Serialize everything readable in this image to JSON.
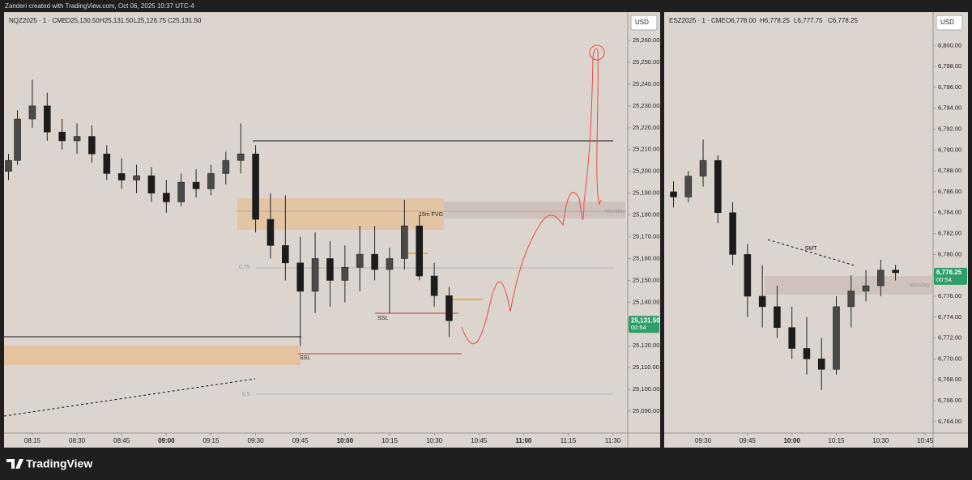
{
  "header": {
    "text": "Zanderi created with TradingView.com, Oct 06, 2025 10:37 UTC-4"
  },
  "footer": {
    "brand": "TradingView"
  },
  "chart_data": [
    {
      "type": "candlestick",
      "symbol": "NQZ2025 · 1 · CME",
      "ohlc": [
        "O25,130.50",
        "H25,131.50",
        "L25,126.75",
        "C25,131.50"
      ],
      "currency": "USD",
      "last_price": {
        "value": 25131.5,
        "label": "25,131.50"
      },
      "countdown": "00:54",
      "annotations": [
        "15m FVG",
        "Monday",
        "0.75",
        "0.5",
        "SSL",
        "SSL"
      ],
      "up_color": "#4a4a4a",
      "down_color": "#1c1c1c",
      "ylim": [
        25080,
        25273
      ],
      "xlim": [
        485.5,
        695
      ],
      "yticks": [
        {
          "value": 25090,
          "label": "25,090.00"
        },
        {
          "value": 25100,
          "label": "25,100.00"
        },
        {
          "value": 25110,
          "label": "25,110.00"
        },
        {
          "value": 25120,
          "label": "25,120.00"
        },
        {
          "value": 25130,
          "label": "25,130.00"
        },
        {
          "value": 25140,
          "label": "25,140.00"
        },
        {
          "value": 25150,
          "label": "25,150.00"
        },
        {
          "value": 25160,
          "label": "25,160.00"
        },
        {
          "value": 25170,
          "label": "25,170.00"
        },
        {
          "value": 25180,
          "label": "25,180.00"
        },
        {
          "value": 25190,
          "label": "25,190.00"
        },
        {
          "value": 25200,
          "label": "25,200.00"
        },
        {
          "value": 25210,
          "label": "25,210.00"
        },
        {
          "value": 25220,
          "label": "25,220.00"
        },
        {
          "value": 25230,
          "label": "25,230.00"
        },
        {
          "value": 25240,
          "label": "25,240.00"
        },
        {
          "value": 25250,
          "label": "25,250.00"
        },
        {
          "value": 25260,
          "label": "25,260.00"
        }
      ],
      "xticks": [
        {
          "value": 495,
          "label": "08:15"
        },
        {
          "value": 510,
          "label": "08:30"
        },
        {
          "value": 525,
          "label": "08:45"
        },
        {
          "value": 540,
          "label": "09:00"
        },
        {
          "value": 555,
          "label": "09:15"
        },
        {
          "value": 570,
          "label": "09:30"
        },
        {
          "value": 585,
          "label": "09:45"
        },
        {
          "value": 600,
          "label": "10:00"
        },
        {
          "value": 615,
          "label": "10:15"
        },
        {
          "value": 630,
          "label": "10:30"
        },
        {
          "value": 645,
          "label": "10:45"
        },
        {
          "value": 660,
          "label": "11:00"
        },
        {
          "value": 675,
          "label": "11:15"
        },
        {
          "value": 690,
          "label": "11:30"
        }
      ],
      "x": [
        487,
        490,
        495,
        500,
        505,
        510,
        515,
        520,
        525,
        530,
        535,
        540,
        545,
        550,
        555,
        560,
        565,
        570,
        575,
        580,
        585,
        590,
        595,
        600,
        605,
        610,
        615,
        620,
        625,
        630,
        635
      ],
      "open": [
        25200,
        25205,
        25224,
        25230,
        25218,
        25214,
        25216,
        25208,
        25199,
        25196,
        25198,
        25190,
        25186,
        25195,
        25192,
        25199,
        25205,
        25208,
        25178,
        25166,
        25158,
        25145,
        25160,
        25150,
        25156,
        25162,
        25155,
        25160,
        25175,
        25152,
        25143
      ],
      "high": [
        25208,
        25228,
        25242,
        25236,
        25224,
        25222,
        25221,
        25212,
        25206,
        25203,
        25202,
        25196,
        25199,
        25201,
        25203,
        25209,
        25222,
        25212,
        25190,
        25189,
        25170,
        25172,
        25168,
        25166,
        25175,
        25175,
        25165,
        25187,
        25180,
        25158,
        25147
      ],
      "low": [
        25196,
        25203,
        25220,
        25214,
        25210,
        25208,
        25204,
        25196,
        25192,
        25190,
        25186,
        25181,
        25184,
        25188,
        25189,
        25194,
        25199,
        25172,
        25160,
        25150,
        25120,
        25135,
        25138,
        25140,
        25145,
        25150,
        25135,
        25155,
        25150,
        25138,
        25124
      ],
      "close": [
        25205,
        25224,
        25230,
        25218,
        25214,
        25216,
        25208,
        25199,
        25196,
        25198,
        25190,
        25186,
        25195,
        25192,
        25199,
        25205,
        25208,
        25178,
        25166,
        25158,
        25145,
        25160,
        25150,
        25156,
        25162,
        25155,
        25160,
        25175,
        25152,
        25143,
        25131.5
      ]
    },
    {
      "type": "candlestick",
      "symbol": "ESZ2025 · 1 · CME",
      "ohlc": [
        "O6,778.00",
        "H6,778.25",
        "L6,777.75",
        "C6,778.25"
      ],
      "currency": "USD",
      "last_price": {
        "value": 6778.25,
        "label": "6,778.25"
      },
      "countdown": "00:54",
      "annotations": [
        "SMT",
        "Monday"
      ],
      "up_color": "#4a4a4a",
      "down_color": "#1c1c1c",
      "ylim": [
        6762.9,
        6803.2
      ],
      "xlim": [
        557.4,
        647.7
      ],
      "yticks": [
        {
          "value": 6764,
          "label": "6,764.00"
        },
        {
          "value": 6766,
          "label": "6,766.00"
        },
        {
          "value": 6768,
          "label": "6,768.00"
        },
        {
          "value": 6770,
          "label": "6,770.00"
        },
        {
          "value": 6772,
          "label": "6,772.00"
        },
        {
          "value": 6774,
          "label": "6,774.00"
        },
        {
          "value": 6776,
          "label": "6,776.00"
        },
        {
          "value": 6778,
          "label": "6,778.00"
        },
        {
          "value": 6780,
          "label": "6,780.00"
        },
        {
          "value": 6782,
          "label": "6,782.00"
        },
        {
          "value": 6784,
          "label": "6,784.00"
        },
        {
          "value": 6786,
          "label": "6,786.00"
        },
        {
          "value": 6788,
          "label": "6,788.00"
        },
        {
          "value": 6790,
          "label": "6,790.00"
        },
        {
          "value": 6792,
          "label": "6,792.00"
        },
        {
          "value": 6794,
          "label": "6,794.00"
        },
        {
          "value": 6796,
          "label": "6,796.00"
        },
        {
          "value": 6798,
          "label": "6,798.00"
        },
        {
          "value": 6800,
          "label": "6,800.00"
        }
      ],
      "xticks": [
        {
          "value": 570,
          "label": "09:30"
        },
        {
          "value": 585,
          "label": "09:45"
        },
        {
          "value": 600,
          "label": "10:00"
        },
        {
          "value": 615,
          "label": "10:15"
        },
        {
          "value": 630,
          "label": "10:30"
        },
        {
          "value": 645,
          "label": "10:45"
        }
      ],
      "x": [
        560,
        565,
        570,
        575,
        580,
        585,
        590,
        595,
        600,
        605,
        610,
        615,
        620,
        625,
        630,
        635
      ],
      "open": [
        6786,
        6785.5,
        6787.5,
        6789,
        6784,
        6780,
        6776,
        6775,
        6773,
        6771,
        6770,
        6769,
        6775,
        6776.5,
        6777,
        6778.5
      ],
      "high": [
        6787,
        6788,
        6791,
        6789.5,
        6785,
        6781,
        6779,
        6777,
        6775,
        6774,
        6772,
        6776,
        6778,
        6778.5,
        6779.5,
        6779
      ],
      "low": [
        6784.5,
        6785,
        6786.5,
        6783,
        6779,
        6774,
        6773,
        6772,
        6770,
        6768.5,
        6767,
        6768.5,
        6773,
        6775.5,
        6776,
        6777.5
      ],
      "close": [
        6785.5,
        6787.5,
        6789,
        6784,
        6780,
        6776,
        6775,
        6773,
        6771,
        6770,
        6769,
        6775,
        6776.5,
        6777,
        6778.5,
        6778.25
      ]
    }
  ]
}
